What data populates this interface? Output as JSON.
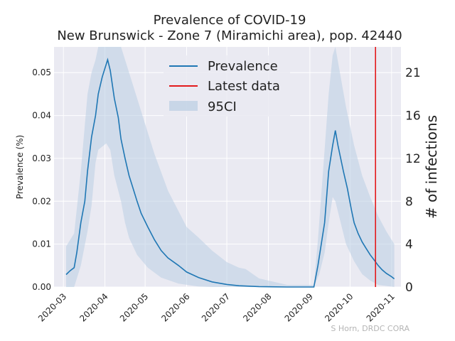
{
  "chart_data": {
    "type": "line",
    "title": "Prevalence of COVID-19",
    "subtitle": "New Brunswick - Zone 7 (Miramichi area), pop. 42440",
    "ylabel": "Prevalence (%)",
    "y2label": "# of infections",
    "ylim": [
      0,
      0.056
    ],
    "y_ticks": [
      "0.00",
      "0.01",
      "0.02",
      "0.03",
      "0.04",
      "0.05"
    ],
    "y2_ticks": [
      "0",
      "4",
      "8",
      "12",
      "16",
      "21"
    ],
    "x_ticks": [
      "2020-03",
      "2020-04",
      "2020-05",
      "2020-06",
      "2020-07",
      "2020-08",
      "2020-09",
      "2020-10",
      "2020-11"
    ],
    "x_range": [
      "2020-02-23",
      "2020-11-08"
    ],
    "grid": true,
    "legend_position": "top-center",
    "series": [
      {
        "name": "Prevalence",
        "color": "#1f77b4",
        "points": [
          [
            "2020-03-03",
            0.0029
          ],
          [
            "2020-03-06",
            0.0038
          ],
          [
            "2020-03-09",
            0.0045
          ],
          [
            "2020-03-11",
            0.008
          ],
          [
            "2020-03-14",
            0.015
          ],
          [
            "2020-03-17",
            0.02
          ],
          [
            "2020-03-19",
            0.027
          ],
          [
            "2020-03-22",
            0.035
          ],
          [
            "2020-03-25",
            0.04
          ],
          [
            "2020-03-27",
            0.045
          ],
          [
            "2020-03-30",
            0.049
          ],
          [
            "2020-04-02",
            0.052
          ],
          [
            "2020-04-03",
            0.053
          ],
          [
            "2020-04-05",
            0.0505
          ],
          [
            "2020-04-08",
            0.044
          ],
          [
            "2020-04-11",
            0.0395
          ],
          [
            "2020-04-13",
            0.0345
          ],
          [
            "2020-04-16",
            0.03
          ],
          [
            "2020-04-19",
            0.026
          ],
          [
            "2020-04-22",
            0.023
          ],
          [
            "2020-04-25",
            0.02
          ],
          [
            "2020-04-28",
            0.0172
          ],
          [
            "2020-05-03",
            0.014
          ],
          [
            "2020-05-08",
            0.011
          ],
          [
            "2020-05-13",
            0.0085
          ],
          [
            "2020-05-18",
            0.0068
          ],
          [
            "2020-05-26",
            0.005
          ],
          [
            "2020-06-01",
            0.0035
          ],
          [
            "2020-06-10",
            0.0022
          ],
          [
            "2020-06-20",
            0.0012
          ],
          [
            "2020-07-01",
            0.0006
          ],
          [
            "2020-07-10",
            0.0003
          ],
          [
            "2020-07-25",
            0.0001
          ],
          [
            "2020-08-15",
            0.0
          ],
          [
            "2020-09-04",
            0.0
          ],
          [
            "2020-09-07",
            0.005
          ],
          [
            "2020-09-12",
            0.015
          ],
          [
            "2020-09-15",
            0.027
          ],
          [
            "2020-09-18",
            0.033
          ],
          [
            "2020-09-20",
            0.0365
          ],
          [
            "2020-09-22",
            0.033
          ],
          [
            "2020-09-26",
            0.027
          ],
          [
            "2020-09-29",
            0.023
          ],
          [
            "2020-10-02",
            0.018
          ],
          [
            "2020-10-04",
            0.015
          ],
          [
            "2020-10-07",
            0.0125
          ],
          [
            "2020-10-10",
            0.0105
          ],
          [
            "2020-10-13",
            0.009
          ],
          [
            "2020-10-16",
            0.0075
          ],
          [
            "2020-10-19",
            0.0063
          ],
          [
            "2020-10-22",
            0.005
          ],
          [
            "2020-10-25",
            0.004
          ],
          [
            "2020-10-28",
            0.0032
          ],
          [
            "2020-11-01",
            0.0024
          ],
          [
            "2020-11-03",
            0.0019
          ]
        ]
      },
      {
        "name": "Latest data",
        "color": "#e31a1c",
        "date": "2020-10-20"
      },
      {
        "name": "95CI",
        "color": "#b9cde3",
        "upper": [
          [
            "2020-03-03",
            0.0095
          ],
          [
            "2020-03-09",
            0.0125
          ],
          [
            "2020-03-14",
            0.027
          ],
          [
            "2020-03-19",
            0.045
          ],
          [
            "2020-03-22",
            0.05
          ],
          [
            "2020-03-25",
            0.053
          ],
          [
            "2020-03-27",
            0.056
          ],
          [
            "2020-04-05",
            0.056
          ],
          [
            "2020-04-13",
            0.056
          ],
          [
            "2020-04-16",
            0.053
          ],
          [
            "2020-04-22",
            0.047
          ],
          [
            "2020-04-28",
            0.041
          ],
          [
            "2020-05-08",
            0.031
          ],
          [
            "2020-05-18",
            0.0225
          ],
          [
            "2020-06-01",
            0.014
          ],
          [
            "2020-06-10",
            0.0115
          ],
          [
            "2020-06-20",
            0.0085
          ],
          [
            "2020-07-01",
            0.0058
          ],
          [
            "2020-07-10",
            0.0045
          ],
          [
            "2020-07-15",
            0.0042
          ],
          [
            "2020-07-25",
            0.002
          ],
          [
            "2020-08-15",
            0.0005
          ],
          [
            "2020-09-04",
            0.0005
          ],
          [
            "2020-09-07",
            0.011
          ],
          [
            "2020-09-12",
            0.032
          ],
          [
            "2020-09-15",
            0.045
          ],
          [
            "2020-09-18",
            0.054
          ],
          [
            "2020-09-20",
            0.056
          ],
          [
            "2020-09-24",
            0.049
          ],
          [
            "2020-09-28",
            0.042
          ],
          [
            "2020-10-04",
            0.033
          ],
          [
            "2020-10-10",
            0.026
          ],
          [
            "2020-10-16",
            0.021
          ],
          [
            "2020-10-22",
            0.0165
          ],
          [
            "2020-10-28",
            0.013
          ],
          [
            "2020-11-03",
            0.01
          ]
        ],
        "lower": [
          [
            "2020-03-03",
            0.0
          ],
          [
            "2020-03-09",
            0.0
          ],
          [
            "2020-03-14",
            0.005
          ],
          [
            "2020-03-19",
            0.013
          ],
          [
            "2020-03-22",
            0.019
          ],
          [
            "2020-03-25",
            0.029
          ],
          [
            "2020-03-27",
            0.032
          ],
          [
            "2020-04-02",
            0.0335
          ],
          [
            "2020-04-05",
            0.032
          ],
          [
            "2020-04-08",
            0.026
          ],
          [
            "2020-04-13",
            0.02
          ],
          [
            "2020-04-16",
            0.015
          ],
          [
            "2020-04-19",
            0.0115
          ],
          [
            "2020-04-25",
            0.0075
          ],
          [
            "2020-05-03",
            0.0045
          ],
          [
            "2020-05-13",
            0.0022
          ],
          [
            "2020-05-26",
            0.0008
          ],
          [
            "2020-06-10",
            0.0001
          ],
          [
            "2020-06-20",
            0.0
          ],
          [
            "2020-09-04",
            0.0
          ],
          [
            "2020-09-08",
            0.003
          ],
          [
            "2020-09-12",
            0.008
          ],
          [
            "2020-09-15",
            0.015
          ],
          [
            "2020-09-18",
            0.021
          ],
          [
            "2020-09-20",
            0.02
          ],
          [
            "2020-09-24",
            0.015
          ],
          [
            "2020-09-28",
            0.01
          ],
          [
            "2020-10-04",
            0.006
          ],
          [
            "2020-10-10",
            0.003
          ],
          [
            "2020-10-16",
            0.0015
          ],
          [
            "2020-10-22",
            0.0005
          ],
          [
            "2020-11-03",
            0.0
          ]
        ]
      }
    ]
  },
  "credit": "S Horn, DRDC CORA"
}
